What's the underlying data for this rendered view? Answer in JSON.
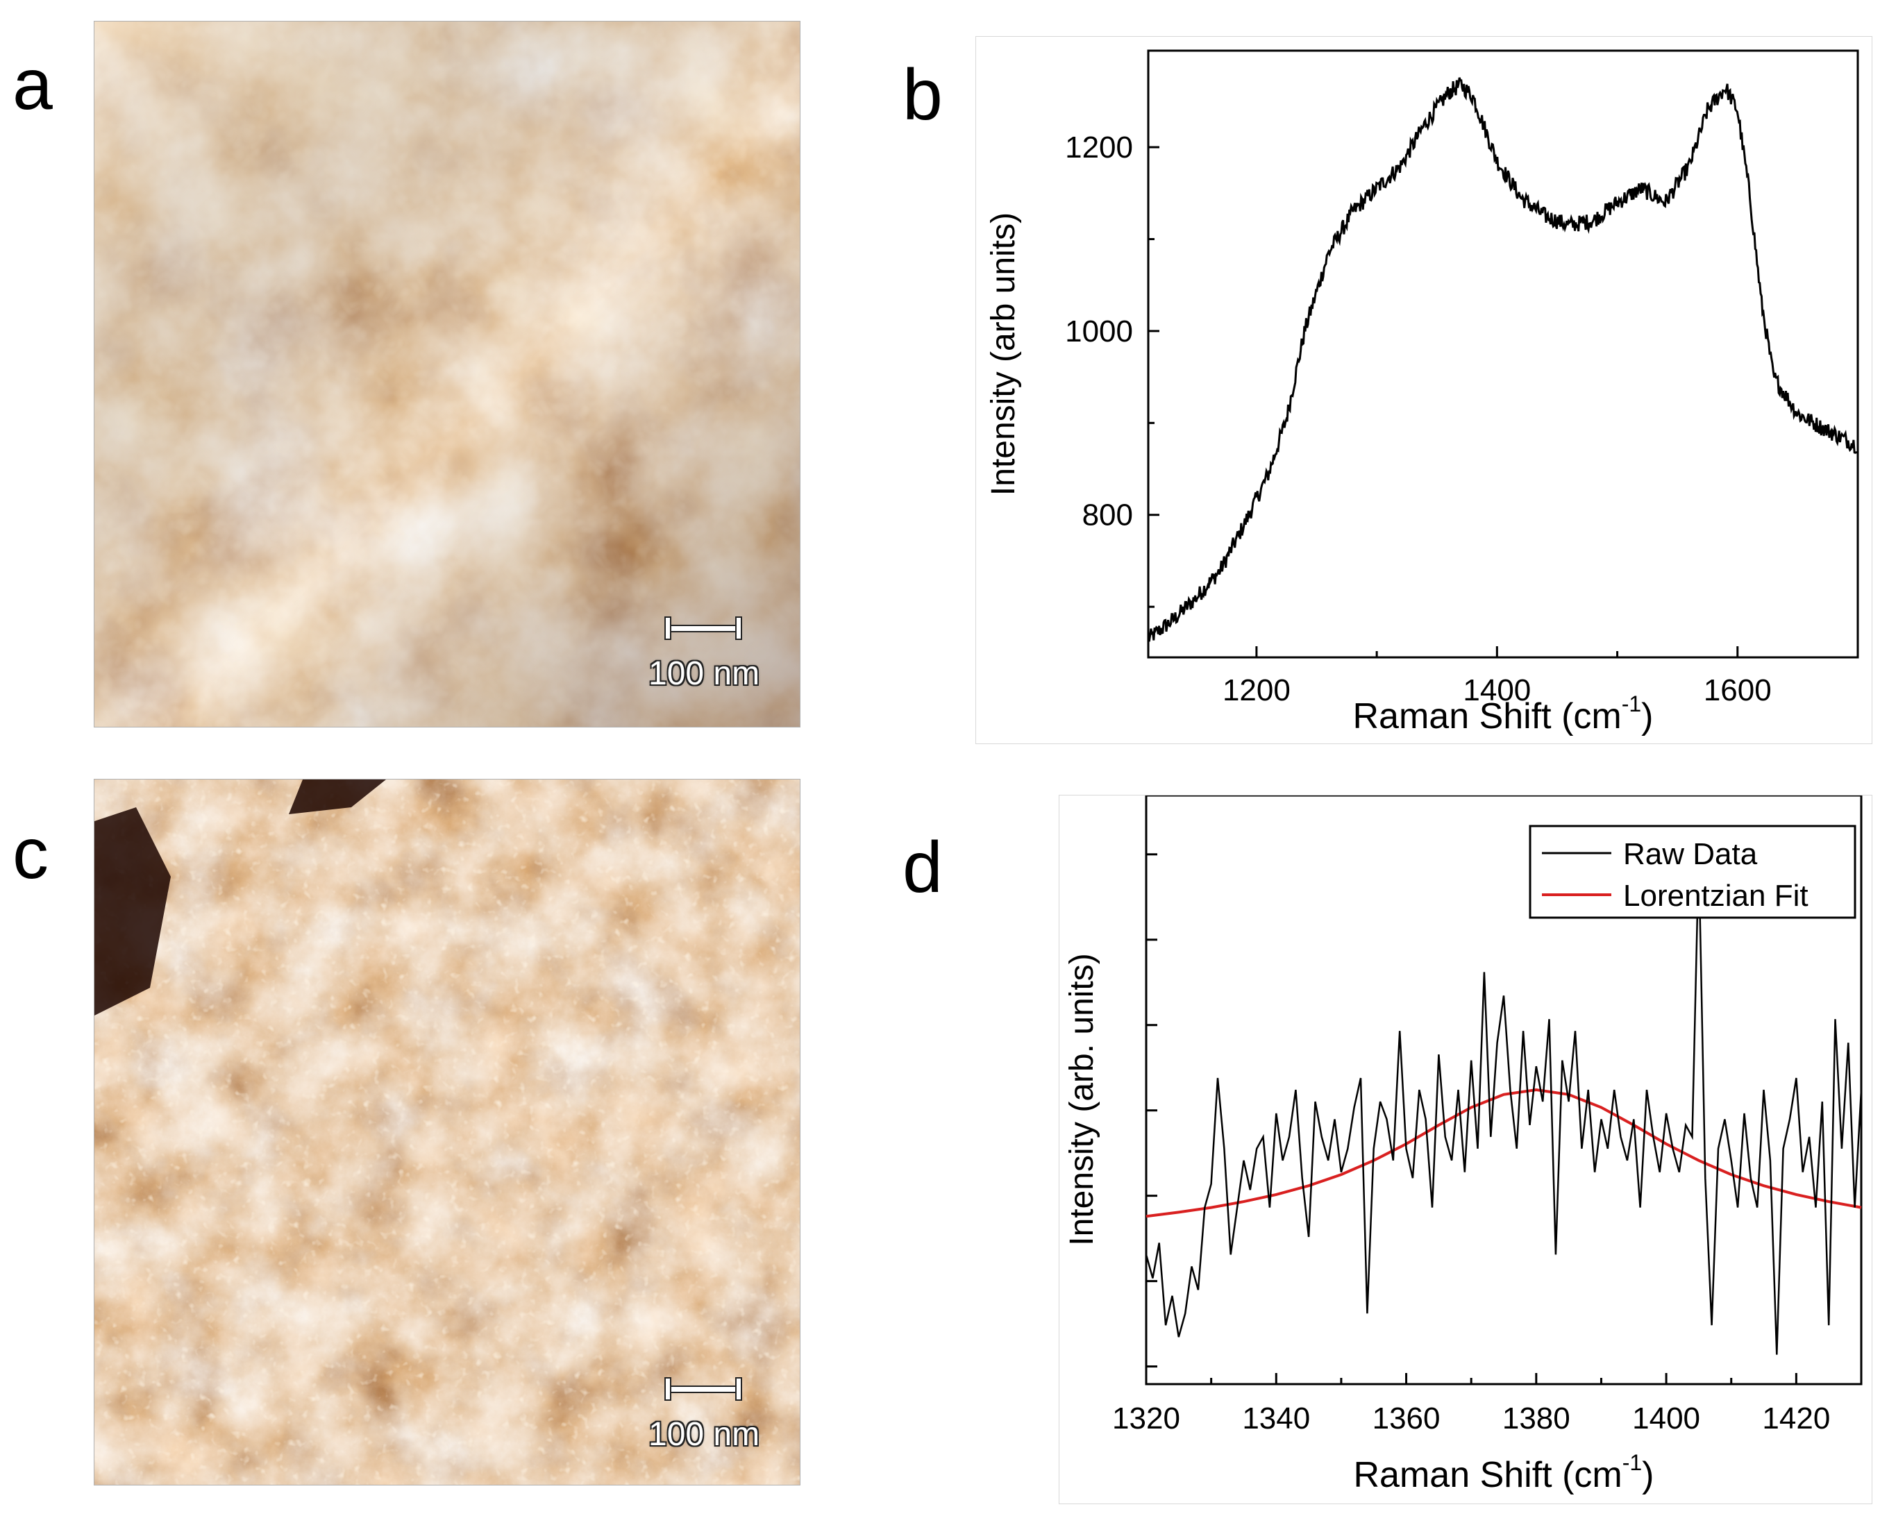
{
  "panel_labels": {
    "a": "a",
    "b": "b",
    "c": "c",
    "d": "d"
  },
  "afm_images": {
    "a": {
      "scale_label": "100 nm",
      "palette": [
        "#3a0d00",
        "#8a3a10",
        "#c9773a",
        "#f1c48a",
        "#fff0d8"
      ]
    },
    "c": {
      "scale_label": "100 nm",
      "palette": [
        "#2a0800",
        "#7a2a05",
        "#c0652a",
        "#eaa566",
        "#fff1dc"
      ]
    }
  },
  "chart_data": [
    {
      "id": "b",
      "type": "line",
      "title": "",
      "xlabel": "Raman Shift (cm",
      "xlabel_sup": "-1",
      "xlabel_end": ")",
      "ylabel": "Intensity (arb units)",
      "xlim": [
        1110,
        1700
      ],
      "ylim": [
        645,
        1305
      ],
      "xticks": [
        1200,
        1400,
        1600
      ],
      "yticks": [
        800,
        1000,
        1200
      ],
      "xtick_labels": [
        "1200",
        "1400",
        "1600"
      ],
      "ytick_labels": [
        "800",
        "1000",
        "1200"
      ],
      "grid": false,
      "series": [
        {
          "name": "Raman spectrum",
          "color": "#000000",
          "x": [
            1110,
            1130,
            1150,
            1170,
            1190,
            1210,
            1225,
            1240,
            1260,
            1280,
            1300,
            1320,
            1340,
            1360,
            1370,
            1380,
            1400,
            1420,
            1440,
            1460,
            1480,
            1500,
            1520,
            1540,
            1560,
            1575,
            1590,
            1600,
            1610,
            1620,
            1630,
            1650,
            1670,
            1700
          ],
          "y": [
            665,
            685,
            710,
            740,
            790,
            845,
            905,
            1000,
            1085,
            1130,
            1155,
            1180,
            1225,
            1260,
            1268,
            1255,
            1185,
            1145,
            1125,
            1115,
            1120,
            1140,
            1155,
            1140,
            1180,
            1240,
            1265,
            1240,
            1150,
            1030,
            950,
            910,
            895,
            875
          ]
        }
      ]
    },
    {
      "id": "d",
      "type": "line",
      "title": "",
      "xlabel": "Raman Shift (cm",
      "xlabel_sup": "-1",
      "xlabel_end": ")",
      "ylabel": "Intensity (arb. units)",
      "xlim": [
        1320,
        1430
      ],
      "ylim": [
        0,
        1
      ],
      "xticks": [
        1320,
        1340,
        1360,
        1380,
        1400,
        1420
      ],
      "xtick_labels": [
        "1320",
        "1340",
        "1360",
        "1380",
        "1400",
        "1420"
      ],
      "ytick_positions": [
        0.03,
        0.175,
        0.32,
        0.465,
        0.61,
        0.755,
        0.9
      ],
      "grid": false,
      "legend": {
        "placement": "top-right",
        "entries": [
          {
            "label": "Raw Data",
            "color": "#000000"
          },
          {
            "label": "Lorentzian Fit",
            "color": "#d92020"
          }
        ]
      },
      "series": [
        {
          "name": "Raw Data",
          "color": "#000000",
          "x": [
            1320,
            1321,
            1322,
            1323,
            1324,
            1325,
            1326,
            1327,
            1328,
            1329,
            1330,
            1331,
            1332,
            1333,
            1334,
            1335,
            1336,
            1337,
            1338,
            1339,
            1340,
            1341,
            1342,
            1343,
            1344,
            1345,
            1346,
            1347,
            1348,
            1349,
            1350,
            1351,
            1352,
            1353,
            1354,
            1355,
            1356,
            1357,
            1358,
            1359,
            1360,
            1361,
            1362,
            1363,
            1364,
            1365,
            1366,
            1367,
            1368,
            1369,
            1370,
            1371,
            1372,
            1373,
            1374,
            1375,
            1376,
            1377,
            1378,
            1379,
            1380,
            1381,
            1382,
            1383,
            1384,
            1385,
            1386,
            1387,
            1388,
            1389,
            1390,
            1391,
            1392,
            1393,
            1394,
            1395,
            1396,
            1397,
            1398,
            1399,
            1400,
            1401,
            1402,
            1403,
            1404,
            1405,
            1406,
            1407,
            1408,
            1409,
            1410,
            1411,
            1412,
            1413,
            1414,
            1415,
            1416,
            1417,
            1418,
            1419,
            1420,
            1421,
            1422,
            1423,
            1424,
            1425,
            1426,
            1427,
            1428,
            1429,
            1430
          ],
          "y": [
            0.22,
            0.18,
            0.24,
            0.1,
            0.15,
            0.08,
            0.12,
            0.2,
            0.16,
            0.3,
            0.34,
            0.52,
            0.4,
            0.22,
            0.3,
            0.38,
            0.33,
            0.4,
            0.42,
            0.3,
            0.46,
            0.38,
            0.42,
            0.5,
            0.35,
            0.25,
            0.48,
            0.42,
            0.38,
            0.45,
            0.36,
            0.4,
            0.47,
            0.52,
            0.12,
            0.4,
            0.48,
            0.45,
            0.38,
            0.6,
            0.4,
            0.35,
            0.5,
            0.45,
            0.3,
            0.56,
            0.42,
            0.38,
            0.5,
            0.36,
            0.55,
            0.4,
            0.7,
            0.42,
            0.58,
            0.66,
            0.5,
            0.4,
            0.6,
            0.44,
            0.54,
            0.48,
            0.62,
            0.22,
            0.55,
            0.48,
            0.6,
            0.4,
            0.5,
            0.36,
            0.45,
            0.4,
            0.5,
            0.42,
            0.38,
            0.45,
            0.3,
            0.5,
            0.42,
            0.36,
            0.46,
            0.4,
            0.36,
            0.44,
            0.42,
            0.9,
            0.35,
            0.1,
            0.4,
            0.45,
            0.38,
            0.3,
            0.46,
            0.35,
            0.3,
            0.5,
            0.38,
            0.05,
            0.4,
            0.45,
            0.52,
            0.36,
            0.42,
            0.3,
            0.48,
            0.1,
            0.62,
            0.4,
            0.58,
            0.3,
            0.5
          ]
        },
        {
          "name": "Lorentzian Fit",
          "color": "#d92020",
          "x": [
            1320,
            1325,
            1330,
            1335,
            1340,
            1345,
            1350,
            1355,
            1360,
            1365,
            1370,
            1375,
            1380,
            1385,
            1390,
            1395,
            1400,
            1405,
            1410,
            1415,
            1420,
            1425,
            1430
          ],
          "y": [
            0.285,
            0.292,
            0.3,
            0.31,
            0.322,
            0.337,
            0.356,
            0.38,
            0.408,
            0.44,
            0.47,
            0.492,
            0.5,
            0.492,
            0.47,
            0.44,
            0.408,
            0.38,
            0.356,
            0.337,
            0.322,
            0.31,
            0.3
          ]
        }
      ]
    }
  ]
}
